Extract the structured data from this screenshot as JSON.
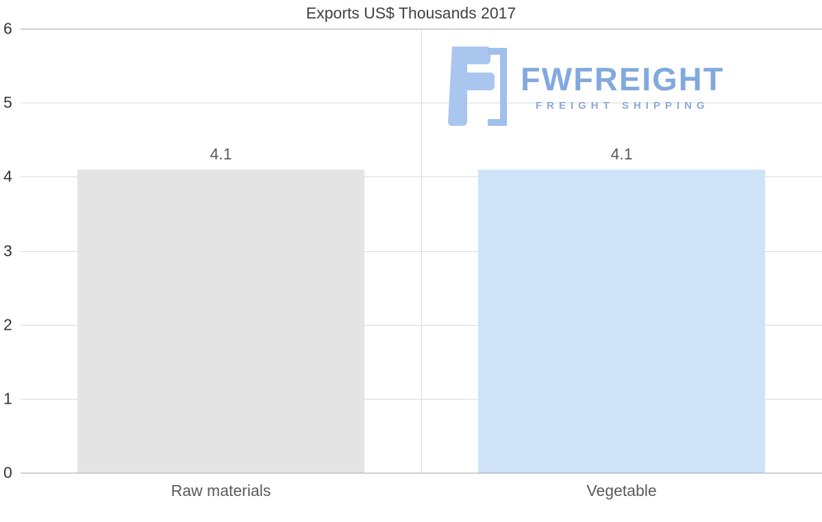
{
  "title": "Exports US$ Thousands 2017",
  "watermark": {
    "brand": "FWFREIGHT",
    "tagline": "FREIGHT SHIPPING",
    "brand_color": "#82a9dd",
    "icon_color": "#a9c6ee"
  },
  "chart_data": {
    "type": "bar",
    "title": "Exports US$ Thousands 2017",
    "categories": [
      "Raw materials",
      "Vegetable"
    ],
    "values": [
      4.1,
      4.1
    ],
    "value_labels": [
      "4.1",
      "4.1"
    ],
    "bar_colors": [
      "#e4e4e4",
      "#cfe3f8"
    ],
    "xlabel": "",
    "ylabel": "",
    "ylim": [
      0,
      6
    ],
    "yticks": [
      0,
      1,
      2,
      3,
      4,
      5,
      6
    ],
    "grid": true,
    "legend": "none"
  }
}
